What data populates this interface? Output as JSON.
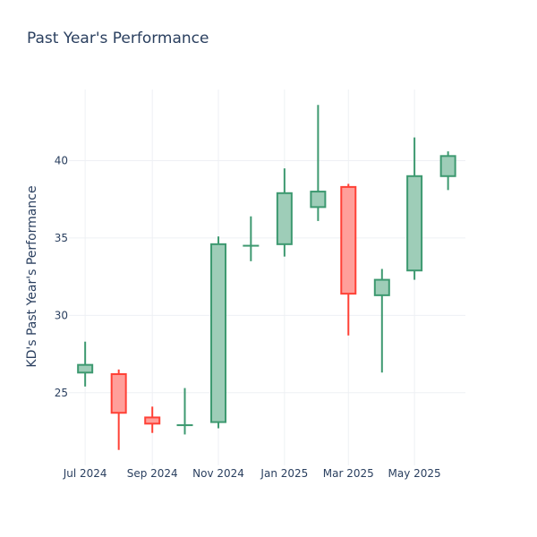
{
  "chart_data": {
    "type": "candlestick",
    "title": "Past Year's Performance",
    "ylabel": "KD's Past Year's Performance",
    "xlabel": "",
    "x_tick_labels": [
      "Jul 2024",
      "Sep 2024",
      "Nov 2024",
      "Jan 2025",
      "Mar 2025",
      "May 2025"
    ],
    "x_tick_dates": [
      "2024-07-01",
      "2024-09-01",
      "2024-11-01",
      "2025-01-01",
      "2025-03-01",
      "2025-05-01"
    ],
    "y_ticks": [
      25,
      30,
      35,
      40
    ],
    "xlim": [
      "2024-06-16",
      "2025-06-17"
    ],
    "ylim": [
      20.3,
      44.6
    ],
    "grid": true,
    "colors": {
      "increasing": "#3d9970",
      "decreasing": "#ff4136",
      "increasing_fill": "#9ecdb8",
      "decreasing_fill": "#ff9f9a"
    },
    "candles": [
      {
        "date": "2024-07-01",
        "open": 26.3,
        "high": 28.3,
        "low": 25.4,
        "close": 26.8
      },
      {
        "date": "2024-08-01",
        "open": 26.2,
        "high": 26.5,
        "low": 21.3,
        "close": 23.7
      },
      {
        "date": "2024-09-01",
        "open": 23.4,
        "high": 24.1,
        "low": 22.4,
        "close": 23.0
      },
      {
        "date": "2024-10-01",
        "open": 22.9,
        "high": 25.3,
        "low": 22.3,
        "close": 22.9
      },
      {
        "date": "2024-11-01",
        "open": 23.1,
        "high": 35.1,
        "low": 22.7,
        "close": 34.6
      },
      {
        "date": "2024-12-01",
        "open": 34.5,
        "high": 36.4,
        "low": 33.5,
        "close": 34.5
      },
      {
        "date": "2025-01-01",
        "open": 34.6,
        "high": 39.5,
        "low": 33.8,
        "close": 37.9
      },
      {
        "date": "2025-02-01",
        "open": 37.0,
        "high": 43.6,
        "low": 36.1,
        "close": 38.0
      },
      {
        "date": "2025-03-01",
        "open": 38.3,
        "high": 38.5,
        "low": 28.7,
        "close": 31.4
      },
      {
        "date": "2025-04-01",
        "open": 31.3,
        "high": 33.0,
        "low": 26.3,
        "close": 32.3
      },
      {
        "date": "2025-05-01",
        "open": 32.9,
        "high": 41.5,
        "low": 32.3,
        "close": 39.0
      },
      {
        "date": "2025-06-01",
        "open": 39.0,
        "high": 40.6,
        "low": 38.1,
        "close": 40.3
      }
    ]
  }
}
